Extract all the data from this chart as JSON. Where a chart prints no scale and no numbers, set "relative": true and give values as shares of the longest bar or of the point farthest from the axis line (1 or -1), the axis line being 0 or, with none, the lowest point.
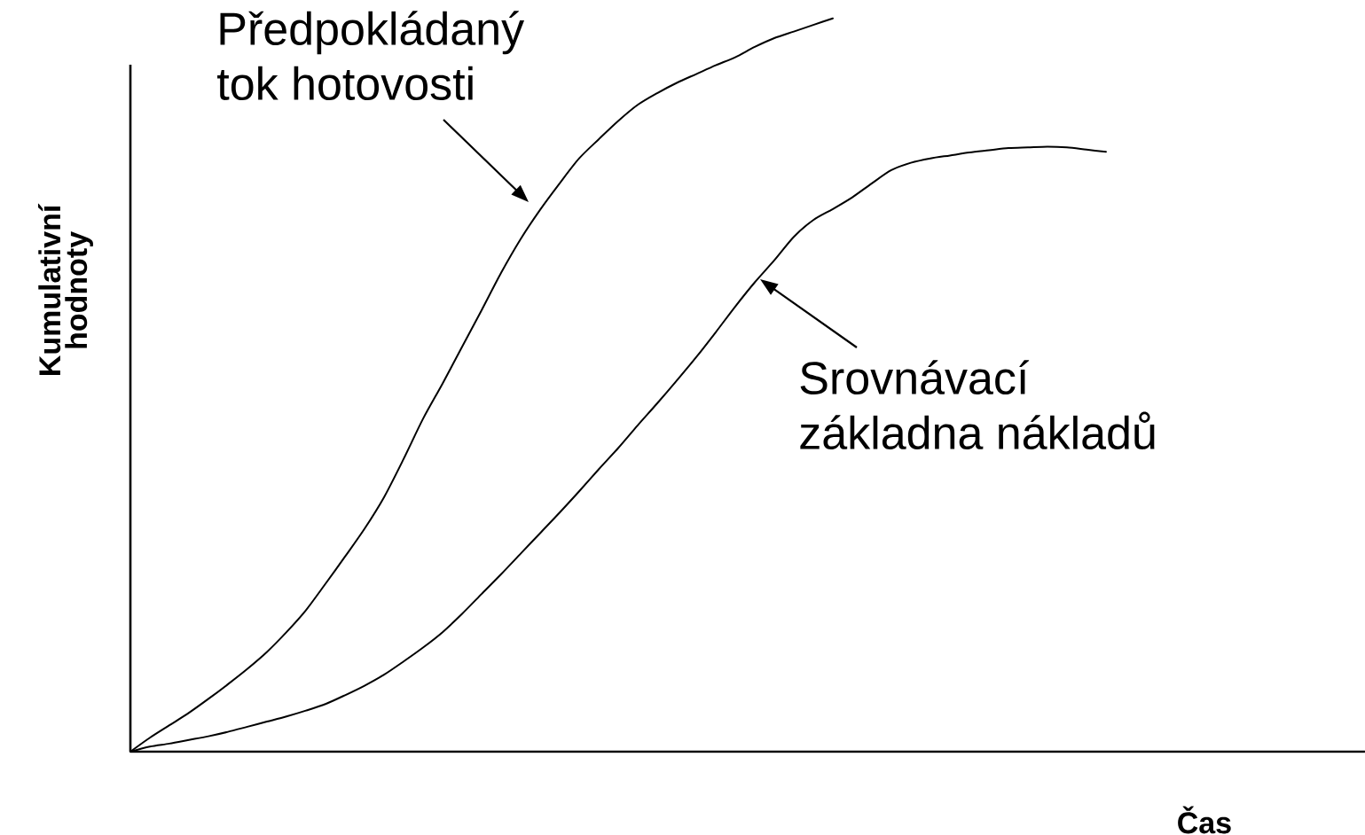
{
  "chart_data": {
    "type": "line",
    "relative": true,
    "xlabel": "Čas",
    "ylabel": "Kumulativní hodnoty",
    "marker": "none",
    "line_style": "solid",
    "categories": [
      null,
      null,
      null,
      null,
      null,
      null,
      null,
      null,
      null,
      null,
      null,
      null,
      null,
      null,
      null,
      null,
      null,
      null,
      null,
      null,
      null,
      null,
      null,
      null,
      null,
      null,
      null,
      null,
      null,
      null,
      null,
      null,
      null,
      null,
      null,
      null,
      null,
      null,
      null,
      null,
      null,
      null,
      null,
      null,
      null,
      null,
      null,
      null,
      null,
      null,
      null,
      null,
      null,
      null,
      null,
      null,
      null,
      null,
      null,
      null,
      null,
      null,
      null,
      null
    ],
    "series": [
      {
        "name": "Předpokládaný tok hotovosti",
        "color": "#000000",
        "values": [
          0,
          0.019,
          0.036,
          0.053,
          0.072,
          0.092,
          0.113,
          0.136,
          0.163,
          0.193,
          0.229,
          0.266,
          0.304,
          0.347,
          0.399,
          0.454,
          0.502,
          0.552,
          0.602,
          0.653,
          0.699,
          0.739,
          0.775,
          0.809,
          0.835,
          0.86,
          0.882,
          0.898,
          0.912,
          0.924,
          0.936,
          0.947,
          0.961,
          0.973,
          0.982,
          0.991,
          1,
          null,
          null,
          null,
          null,
          null,
          null,
          null,
          null,
          null,
          null,
          null,
          null,
          null,
          null,
          null,
          null,
          null,
          null,
          null,
          null,
          null,
          null,
          null,
          null,
          null,
          null,
          null
        ]
      },
      {
        "name": "Srovnávací základna nákladů",
        "color": "#000000",
        "values": [
          0,
          0.007,
          0.011,
          0.016,
          0.021,
          0.027,
          0.034,
          0.041,
          0.048,
          0.056,
          0.065,
          0.077,
          0.09,
          0.105,
          0.123,
          0.142,
          0.163,
          0.188,
          0.215,
          0.242,
          0.27,
          0.298,
          0.326,
          0.355,
          0.385,
          0.414,
          0.445,
          0.475,
          0.506,
          0.538,
          0.572,
          0.607,
          0.64,
          0.67,
          0.702,
          0.725,
          0.74,
          0.756,
          0.775,
          0.793,
          0.803,
          0.809,
          0.813,
          0.817,
          0.82,
          0.823,
          0.824,
          0.825,
          0.824,
          0.821,
          0.818,
          null,
          null,
          null,
          null,
          null,
          null,
          null,
          null,
          null,
          null,
          null,
          null,
          null
        ]
      }
    ]
  }
}
